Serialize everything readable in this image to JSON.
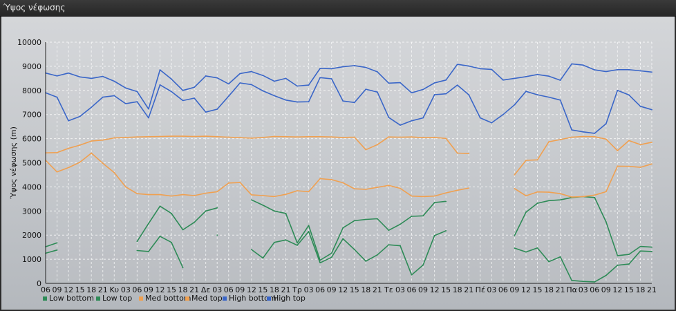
{
  "window": {
    "title": "Ύψος νέφωσης"
  },
  "chart_data": {
    "type": "line",
    "title": "",
    "xlabel": "",
    "ylabel": "Ύψος νέφωσης (m)",
    "ylim": [
      0,
      10000
    ],
    "yticks": [
      0,
      1000,
      2000,
      3000,
      4000,
      5000,
      6000,
      7000,
      8000,
      9000,
      10000
    ],
    "grid": true,
    "legend_position": "bottom-left",
    "categories": [
      "06",
      "09",
      "12",
      "15",
      "18",
      "21",
      "Κυ",
      "03",
      "06",
      "09",
      "12",
      "15",
      "18",
      "21",
      "Δε",
      "03",
      "06",
      "09",
      "12",
      "15",
      "18",
      "21",
      "Τρ",
      "03",
      "06",
      "09",
      "12",
      "15",
      "18",
      "21",
      "Τε",
      "03",
      "06",
      "09",
      "12",
      "15",
      "18",
      "21",
      "Πέ",
      "03",
      "06",
      "09",
      "12",
      "15",
      "18",
      "21",
      "Πα",
      "03",
      "06",
      "09",
      "12",
      "15",
      "18",
      "21"
    ],
    "series": [
      {
        "name": "Low bottom",
        "color": "#2e8b57",
        "values": [
          1250,
          1380,
          null,
          null,
          null,
          null,
          null,
          null,
          1360,
          1320,
          1950,
          1700,
          650,
          null,
          null,
          2000,
          null,
          null,
          1400,
          1050,
          1700,
          1800,
          1580,
          2150,
          850,
          1080,
          1850,
          1400,
          920,
          1180,
          1600,
          1560,
          350,
          760,
          1980,
          2180,
          null,
          null,
          null,
          null,
          null,
          1460,
          1300,
          1470,
          900,
          1100,
          120,
          80,
          60,
          330,
          750,
          800,
          1340,
          1320
        ]
      },
      {
        "name": "Low top",
        "color": "#2e8b57",
        "values": [
          1520,
          1680,
          null,
          null,
          null,
          null,
          null,
          null,
          1740,
          2480,
          3200,
          2900,
          2220,
          2530,
          3000,
          3130,
          null,
          null,
          3460,
          3240,
          3000,
          2900,
          1680,
          2400,
          960,
          1250,
          2300,
          2600,
          2650,
          2680,
          2200,
          2450,
          2780,
          2800,
          3350,
          3400,
          null,
          null,
          null,
          null,
          null,
          1980,
          2950,
          3320,
          3430,
          3460,
          3560,
          3600,
          3560,
          2550,
          1150,
          1200,
          1530,
          1500
        ]
      },
      {
        "name": "Med bottom",
        "color": "#f0a050",
        "values": [
          5100,
          4620,
          4800,
          5020,
          5400,
          4980,
          4590,
          4000,
          3720,
          3680,
          3680,
          3620,
          3680,
          3640,
          3740,
          3800,
          4160,
          4180,
          3670,
          3640,
          3600,
          3690,
          3840,
          3800,
          4340,
          4300,
          4170,
          3920,
          3900,
          3980,
          4060,
          3940,
          3620,
          3600,
          3620,
          3750,
          3860,
          3950,
          null,
          null,
          null,
          3930,
          3630,
          3790,
          3780,
          3720,
          3580,
          3600,
          3660,
          3800,
          4860,
          4850,
          4810,
          4950
        ]
      },
      {
        "name": "Med top",
        "color": "#f0a050",
        "values": [
          5410,
          5420,
          5600,
          5730,
          5900,
          5940,
          6030,
          6050,
          6070,
          6080,
          6090,
          6100,
          6100,
          6090,
          6100,
          6080,
          6060,
          6040,
          6020,
          6050,
          6090,
          6080,
          6070,
          6080,
          6080,
          6070,
          6050,
          6060,
          5540,
          5750,
          6070,
          6060,
          6070,
          6040,
          6050,
          6010,
          5400,
          5380,
          null,
          null,
          null,
          4500,
          5100,
          5120,
          5870,
          5960,
          6060,
          6090,
          6080,
          5980,
          5500,
          5920,
          5750,
          5850
        ]
      },
      {
        "name": "High bottom",
        "color": "#3a66c8",
        "values": [
          7900,
          7720,
          6740,
          6920,
          7300,
          7720,
          7780,
          7450,
          7530,
          6860,
          8230,
          7950,
          7580,
          7680,
          7100,
          7220,
          7760,
          8310,
          8240,
          7980,
          7780,
          7600,
          7520,
          7530,
          8530,
          8480,
          7560,
          7500,
          8050,
          7930,
          6880,
          6560,
          6740,
          6860,
          7820,
          7860,
          8220,
          7820,
          6860,
          6660,
          7000,
          7400,
          7960,
          7820,
          7720,
          7600,
          6360,
          6280,
          6220,
          6620,
          8000,
          7810,
          7340,
          7200
        ]
      },
      {
        "name": "High top",
        "color": "#3a66c8",
        "values": [
          8720,
          8600,
          8720,
          8560,
          8500,
          8580,
          8380,
          8100,
          7950,
          7230,
          8850,
          8470,
          8000,
          8130,
          8600,
          8520,
          8270,
          8700,
          8780,
          8620,
          8380,
          8500,
          8180,
          8220,
          8910,
          8900,
          8980,
          9030,
          8950,
          8770,
          8300,
          8320,
          7900,
          8040,
          8310,
          8430,
          9080,
          9010,
          8900,
          8870,
          8430,
          8500,
          8570,
          8660,
          8590,
          8420,
          9100,
          9050,
          8850,
          8780,
          8860,
          8860,
          8810,
          8760
        ]
      }
    ]
  }
}
